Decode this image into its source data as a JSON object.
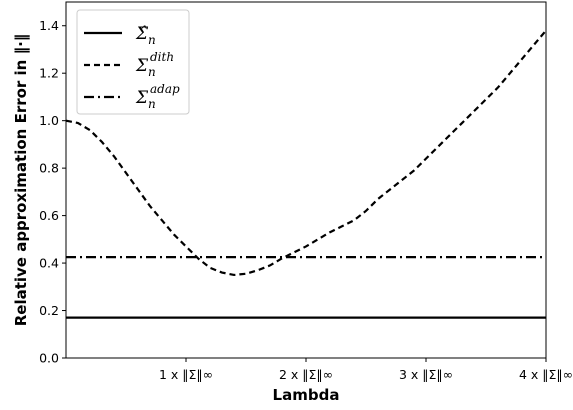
{
  "chart_data": {
    "type": "line",
    "xlabel": "Lambda",
    "ylabel": "Relative approximation Error in ‖·‖",
    "ylim": [
      0.0,
      1.5
    ],
    "xlim": [
      0.0,
      4.0
    ],
    "y_ticks": [
      0.0,
      0.2,
      0.4,
      0.6,
      0.8,
      1.0,
      1.2,
      1.4
    ],
    "y_tick_labels": [
      "0.0",
      "0.2",
      "0.4",
      "0.6",
      "0.8",
      "1.0",
      "1.2",
      "1.4"
    ],
    "x_ticks": [
      1,
      2,
      3,
      4
    ],
    "x_tick_labels": [
      "1 x ‖Σ‖∞",
      "2 x ‖Σ‖∞",
      "3 x ‖Σ‖∞",
      "4 x ‖Σ‖∞"
    ],
    "legend_position": "upper-left",
    "grid": false,
    "series": [
      {
        "name": "Σ̂n",
        "style": "solid",
        "color": "#000000",
        "x": [
          0.0,
          4.0
        ],
        "y": [
          0.17,
          0.17
        ]
      },
      {
        "name": "Σn^dith",
        "style": "dashed",
        "color": "#000000",
        "x": [
          0.0,
          0.1,
          0.2,
          0.3,
          0.4,
          0.5,
          0.6,
          0.7,
          0.8,
          0.9,
          1.0,
          1.1,
          1.2,
          1.3,
          1.4,
          1.5,
          1.6,
          1.7,
          1.8,
          1.9,
          2.0,
          2.1,
          2.2,
          2.3,
          2.4,
          2.5,
          2.6,
          2.7,
          2.8,
          2.9,
          3.0,
          3.1,
          3.2,
          3.3,
          3.4,
          3.5,
          3.6,
          3.7,
          3.8,
          3.9,
          4.0
        ],
        "y": [
          1.0,
          0.99,
          0.96,
          0.91,
          0.85,
          0.78,
          0.71,
          0.64,
          0.58,
          0.52,
          0.47,
          0.42,
          0.38,
          0.36,
          0.35,
          0.355,
          0.37,
          0.39,
          0.42,
          0.445,
          0.47,
          0.5,
          0.53,
          0.555,
          0.58,
          0.62,
          0.67,
          0.71,
          0.75,
          0.79,
          0.84,
          0.89,
          0.94,
          0.99,
          1.04,
          1.09,
          1.14,
          1.2,
          1.26,
          1.32,
          1.38
        ]
      },
      {
        "name": "Σn^adap",
        "style": "dashdot",
        "color": "#000000",
        "x": [
          0.0,
          4.0
        ],
        "y": [
          0.425,
          0.425
        ]
      }
    ]
  },
  "legend": {
    "items": [
      {
        "base": "Σ̂",
        "sub": "n",
        "sup": ""
      },
      {
        "base": "Σ",
        "sub": "n",
        "sup": "dith"
      },
      {
        "base": "Σ",
        "sub": "n",
        "sup": "adap"
      }
    ]
  }
}
